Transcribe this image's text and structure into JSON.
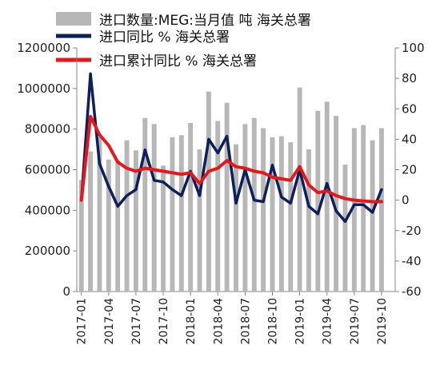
{
  "chart_data": {
    "type": "bar+line",
    "legend_position": "top",
    "grid": false,
    "x": [
      "2017-01",
      "2017-02",
      "2017-03",
      "2017-04",
      "2017-05",
      "2017-06",
      "2017-07",
      "2017-08",
      "2017-09",
      "2017-10",
      "2017-11",
      "2017-12",
      "2018-01",
      "2018-02",
      "2018-03",
      "2018-04",
      "2018-05",
      "2018-06",
      "2018-07",
      "2018-08",
      "2018-09",
      "2018-10",
      "2018-11",
      "2018-12",
      "2019-01",
      "2019-02",
      "2019-03",
      "2019-04",
      "2019-05",
      "2019-06",
      "2019-07",
      "2019-08",
      "2019-09",
      "2019-10",
      "2019-11"
    ],
    "x_tick_labels": [
      "2017-01",
      "2017-04",
      "2017-07",
      "2017-10",
      "2018-01",
      "2018-04",
      "2018-07",
      "2018-10",
      "2019-01",
      "2019-04",
      "2019-07",
      "2019-10"
    ],
    "y_left": {
      "lim": [
        0,
        1200000
      ],
      "ticks": [
        "0",
        "200000",
        "400000",
        "600000",
        "800000",
        "1000000",
        "1200000"
      ]
    },
    "y_right": {
      "lim": [
        -60,
        100
      ],
      "ticks": [
        "-60",
        "-40",
        "-20",
        "0",
        "20",
        "40",
        "60",
        "80",
        "100"
      ]
    },
    "series": [
      {
        "name": "进口数量:MEG:当月值 吨 海关总署",
        "kind": "bar",
        "axis": "left",
        "color": "#b7b7b7",
        "values": [
          550000,
          690000,
          760000,
          650000,
          645000,
          745000,
          695000,
          855000,
          825000,
          620000,
          760000,
          770000,
          830000,
          700000,
          985000,
          840000,
          930000,
          725000,
          825000,
          855000,
          805000,
          760000,
          765000,
          735000,
          1005000,
          700000,
          890000,
          935000,
          865000,
          625000,
          805000,
          820000,
          745000,
          805000,
          null
        ]
      },
      {
        "name": "进口同比 % 海关总署",
        "kind": "line",
        "axis": "right",
        "color": "#0d1f5c",
        "values": [
          0,
          83,
          24,
          9,
          -4,
          3,
          7,
          33,
          13,
          12,
          7,
          3,
          19,
          3,
          40,
          31,
          42,
          -2,
          20,
          0,
          -1,
          23,
          2,
          -2,
          20,
          -4,
          -9,
          11,
          -7,
          -14,
          -3,
          -3,
          -8,
          7,
          null
        ]
      },
      {
        "name": "进口累计同比 % 海关总署",
        "kind": "line",
        "axis": "right",
        "color": "#e8161b",
        "values": [
          0,
          55,
          43,
          36,
          25,
          21,
          19,
          21,
          20,
          19,
          18,
          17,
          18,
          11,
          19,
          21,
          26,
          22,
          21,
          19,
          18,
          15,
          14,
          13,
          22,
          10,
          5,
          6,
          3,
          1,
          0,
          -0.5,
          -1,
          -1,
          null
        ]
      }
    ]
  }
}
